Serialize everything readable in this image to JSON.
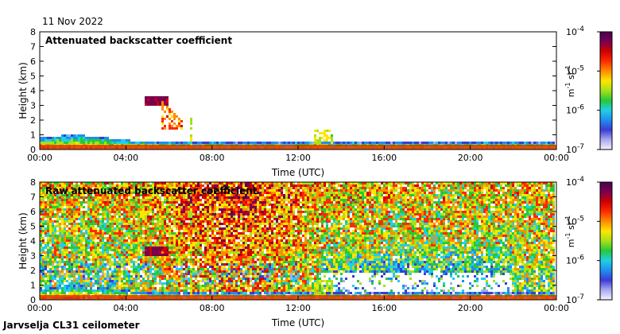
{
  "header": {
    "date": "11 Nov 2022"
  },
  "footer": {
    "site_label": "Jarvselja CL31 ceilometer"
  },
  "colormap_stops": [
    "#f4f4ff",
    "#a9a9f2",
    "#3b3bd6",
    "#1f8ef0",
    "#1fd0e6",
    "#26c93a",
    "#a6e01a",
    "#ffe600",
    "#ff8c00",
    "#ff2a00",
    "#d10000",
    "#7a0050",
    "#4a0050"
  ],
  "chart_data": [
    {
      "type": "heatmap",
      "title": "Attenuated backscatter coefficient",
      "xlabel": "Time (UTC)",
      "ylabel": "Height (km)",
      "x_ticks": [
        "00:00",
        "04:00",
        "08:00",
        "12:00",
        "16:00",
        "20:00",
        "00:00"
      ],
      "y_ticks": [
        "0",
        "1",
        "2",
        "3",
        "4",
        "5",
        "6",
        "7",
        "8"
      ],
      "xlim_hours": [
        0,
        24
      ],
      "ylim_km": [
        0,
        8
      ],
      "colorbar": {
        "ticks": [
          "10",
          "10",
          "10",
          "10"
        ],
        "exponents": [
          "-4",
          "-5",
          "-6",
          "-7"
        ],
        "log_values": [
          -4,
          -5,
          -6,
          -7
        ],
        "unit_base": [
          "m",
          "sr"
        ],
        "unit_exp": [
          "-1",
          "-1"
        ],
        "scale": "log"
      }
    },
    {
      "type": "heatmap",
      "title": "Raw attenuated backscatter coefficient",
      "xlabel": "Time (UTC)",
      "ylabel": "Height (km)",
      "x_ticks": [
        "00:00",
        "04:00",
        "08:00",
        "12:00",
        "16:00",
        "20:00",
        "00:00"
      ],
      "y_ticks": [
        "0",
        "1",
        "2",
        "3",
        "4",
        "5",
        "6",
        "7",
        "8"
      ],
      "xlim_hours": [
        0,
        24
      ],
      "ylim_km": [
        0,
        8
      ],
      "colorbar": {
        "ticks": [
          "10",
          "10",
          "10",
          "10"
        ],
        "exponents": [
          "-4",
          "-5",
          "-6",
          "-7"
        ],
        "log_values": [
          -4,
          -5,
          -6,
          -7
        ],
        "unit_base": [
          "m",
          "sr"
        ],
        "unit_exp": [
          "-1",
          "-1"
        ],
        "scale": "log"
      }
    }
  ]
}
